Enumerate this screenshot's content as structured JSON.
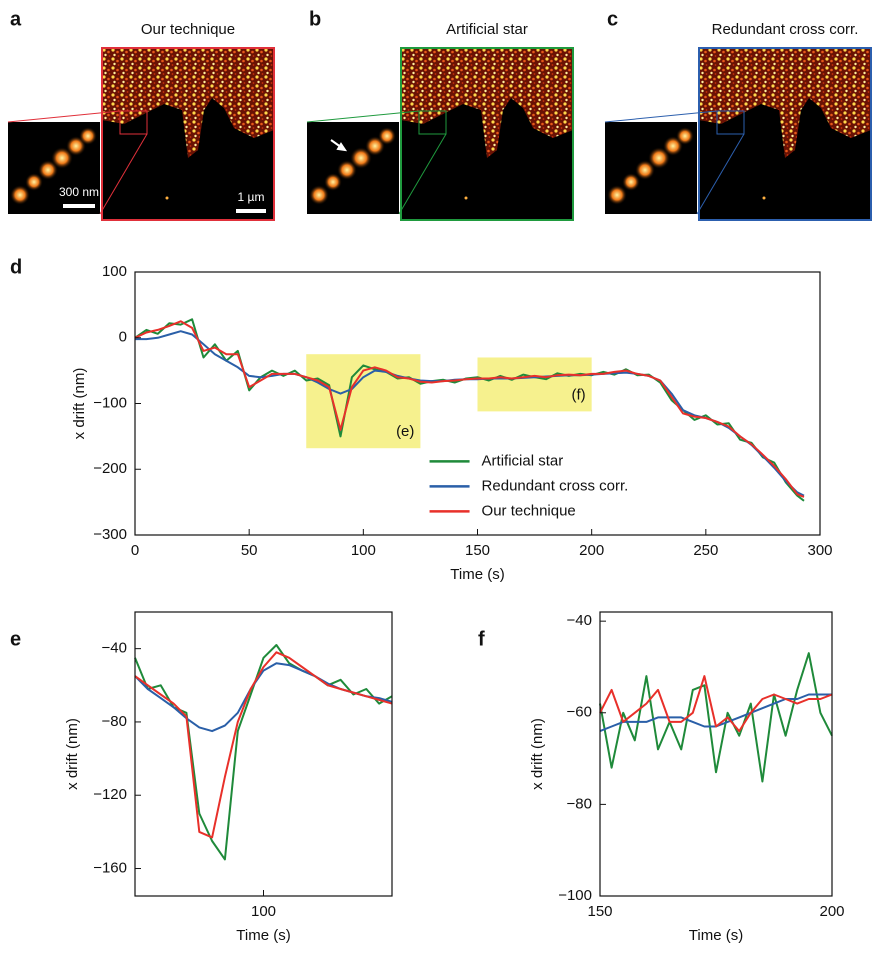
{
  "images": [
    {
      "label": "a",
      "title": "Our technique",
      "color": "#e0303a",
      "inset_scale": "300 nm",
      "scale": "1 µm"
    },
    {
      "label": "b",
      "title": "Artificial star",
      "color": "#1f9a3e"
    },
    {
      "label": "c",
      "title": "Redundant cross corr.",
      "color": "#2c5fae"
    }
  ],
  "chart_data": [
    {
      "type": "line",
      "label": "d",
      "xlabel": "Time (s)",
      "ylabel": "x drift (nm)",
      "xlim": [
        0,
        300
      ],
      "xticks": [
        0,
        50,
        100,
        150,
        200,
        250,
        300
      ],
      "ylim": [
        -300,
        100
      ],
      "yticks": [
        {
          "value": -300,
          "label": "−300"
        },
        {
          "value": -200,
          "label": "−200"
        },
        {
          "value": -100,
          "label": "−100"
        },
        0,
        100
      ],
      "legend": "lower center",
      "highlights": [
        {
          "label": "(e)",
          "xrange": [
            75,
            125
          ],
          "yrange": [
            -168,
            -25
          ]
        },
        {
          "label": "(f)",
          "xrange": [
            150,
            200
          ],
          "yrange": [
            -112,
            -30
          ]
        }
      ],
      "x": [
        0,
        5,
        10,
        15,
        20,
        25,
        30,
        35,
        40,
        45,
        50,
        55,
        60,
        65,
        70,
        75,
        80,
        85,
        90,
        95,
        100,
        105,
        110,
        115,
        120,
        125,
        130,
        135,
        140,
        145,
        150,
        155,
        160,
        165,
        170,
        175,
        180,
        185,
        190,
        195,
        200,
        205,
        210,
        215,
        220,
        225,
        230,
        235,
        240,
        245,
        250,
        255,
        260,
        265,
        270,
        275,
        280,
        285,
        290,
        293
      ],
      "series": [
        {
          "name": "Artificial star",
          "color": "#1f8a3a",
          "values": [
            0,
            12,
            6,
            22,
            20,
            28,
            -30,
            -10,
            -35,
            -20,
            -80,
            -60,
            -50,
            -58,
            -50,
            -65,
            -62,
            -72,
            -150,
            -60,
            -42,
            -48,
            -52,
            -62,
            -60,
            -70,
            -66,
            -64,
            -68,
            -62,
            -60,
            -65,
            -58,
            -64,
            -56,
            -60,
            -63,
            -54,
            -58,
            -55,
            -57,
            -52,
            -56,
            -48,
            -57,
            -56,
            -68,
            -95,
            -110,
            -125,
            -118,
            -132,
            -130,
            -155,
            -160,
            -182,
            -190,
            -220,
            -240,
            -248
          ]
        },
        {
          "name": "Redundant cross corr.",
          "color": "#2a5fa8",
          "values": [
            -2,
            -2,
            0,
            5,
            10,
            5,
            -10,
            -25,
            -35,
            -45,
            -58,
            -60,
            -58,
            -55,
            -55,
            -60,
            -68,
            -78,
            -85,
            -78,
            -60,
            -50,
            -52,
            -58,
            -62,
            -65,
            -66,
            -66,
            -64,
            -63,
            -63,
            -62,
            -62,
            -62,
            -61,
            -60,
            -59,
            -58,
            -57,
            -57,
            -56,
            -55,
            -54,
            -53,
            -55,
            -58,
            -65,
            -85,
            -110,
            -118,
            -122,
            -128,
            -137,
            -150,
            -163,
            -180,
            -198,
            -218,
            -235,
            -240
          ]
        },
        {
          "name": "Our technique",
          "color": "#e8302a",
          "values": [
            0,
            8,
            12,
            18,
            25,
            15,
            -20,
            -15,
            -25,
            -25,
            -75,
            -65,
            -55,
            -55,
            -55,
            -60,
            -65,
            -75,
            -140,
            -75,
            -50,
            -45,
            -50,
            -60,
            -62,
            -67,
            -68,
            -66,
            -65,
            -63,
            -62,
            -62,
            -60,
            -62,
            -60,
            -58,
            -60,
            -57,
            -56,
            -57,
            -55,
            -55,
            -52,
            -50,
            -55,
            -58,
            -65,
            -90,
            -115,
            -120,
            -122,
            -128,
            -135,
            -150,
            -162,
            -178,
            -195,
            -215,
            -238,
            -242
          ]
        }
      ]
    },
    {
      "type": "line",
      "label": "e",
      "xlabel": "Time (s)",
      "ylabel": "x drift (nm)",
      "xlim": [
        75,
        125
      ],
      "xticks": [
        100
      ],
      "ylim": [
        -175,
        -20
      ],
      "yticks": [
        {
          "value": -160,
          "label": "−160"
        },
        {
          "value": -120,
          "label": "−120"
        },
        {
          "value": -80,
          "label": "−80"
        },
        {
          "value": -40,
          "label": "−40"
        }
      ],
      "x": [
        75,
        77.5,
        80,
        82.5,
        85,
        87.5,
        90,
        92.5,
        95,
        97.5,
        100,
        102.5,
        105,
        107.5,
        110,
        112.5,
        115,
        117.5,
        120,
        122.5,
        125
      ],
      "series": [
        {
          "color": "#1f8a3a",
          "values": [
            -45,
            -62,
            -60,
            -72,
            -75,
            -130,
            -145,
            -155,
            -85,
            -65,
            -45,
            -38,
            -48,
            -52,
            -55,
            -60,
            -57,
            -65,
            -62,
            -70,
            -66
          ]
        },
        {
          "color": "#2a5fa8",
          "values": [
            -55,
            -62,
            -67,
            -72,
            -78,
            -83,
            -85,
            -82,
            -75,
            -62,
            -52,
            -48,
            -49,
            -52,
            -55,
            -59,
            -62,
            -64,
            -66,
            -67,
            -69
          ]
        },
        {
          "color": "#e8302a",
          "values": [
            -55,
            -60,
            -65,
            -70,
            -77,
            -140,
            -143,
            -110,
            -80,
            -62,
            -50,
            -42,
            -45,
            -50,
            -55,
            -60,
            -62,
            -64,
            -66,
            -68,
            -70
          ]
        }
      ]
    },
    {
      "type": "line",
      "label": "f",
      "xlabel": "Time (s)",
      "ylabel": "x drift (nm)",
      "xlim": [
        150,
        200
      ],
      "xticks": [
        150,
        200
      ],
      "ylim": [
        -100,
        -38
      ],
      "yticks": [
        {
          "value": -100,
          "label": "−100"
        },
        {
          "value": -80,
          "label": "−80"
        },
        {
          "value": -60,
          "label": "−60"
        },
        {
          "value": -40,
          "label": "−40"
        }
      ],
      "x": [
        150,
        152.5,
        155,
        157.5,
        160,
        162.5,
        165,
        167.5,
        170,
        172.5,
        175,
        177.5,
        180,
        182.5,
        185,
        187.5,
        190,
        192.5,
        195,
        197.5,
        200
      ],
      "series": [
        {
          "color": "#1f8a3a",
          "values": [
            -58,
            -72,
            -60,
            -66,
            -52,
            -68,
            -62,
            -68,
            -55,
            -54,
            -73,
            -60,
            -65,
            -58,
            -75,
            -56,
            -65,
            -55,
            -47,
            -60,
            -65
          ]
        },
        {
          "color": "#2a5fa8",
          "values": [
            -64,
            -63,
            -62,
            -62,
            -62,
            -61,
            -61,
            -61,
            -62,
            -63,
            -63,
            -62,
            -61,
            -60,
            -59,
            -58,
            -57,
            -57,
            -56,
            -56,
            -56
          ]
        },
        {
          "color": "#e8302a",
          "values": [
            -60,
            -55,
            -62,
            -60,
            -58,
            -55,
            -62,
            -62,
            -60,
            -52,
            -63,
            -61,
            -64,
            -60,
            -57,
            -56,
            -57,
            -58,
            -57,
            -57,
            -56
          ]
        }
      ]
    }
  ]
}
